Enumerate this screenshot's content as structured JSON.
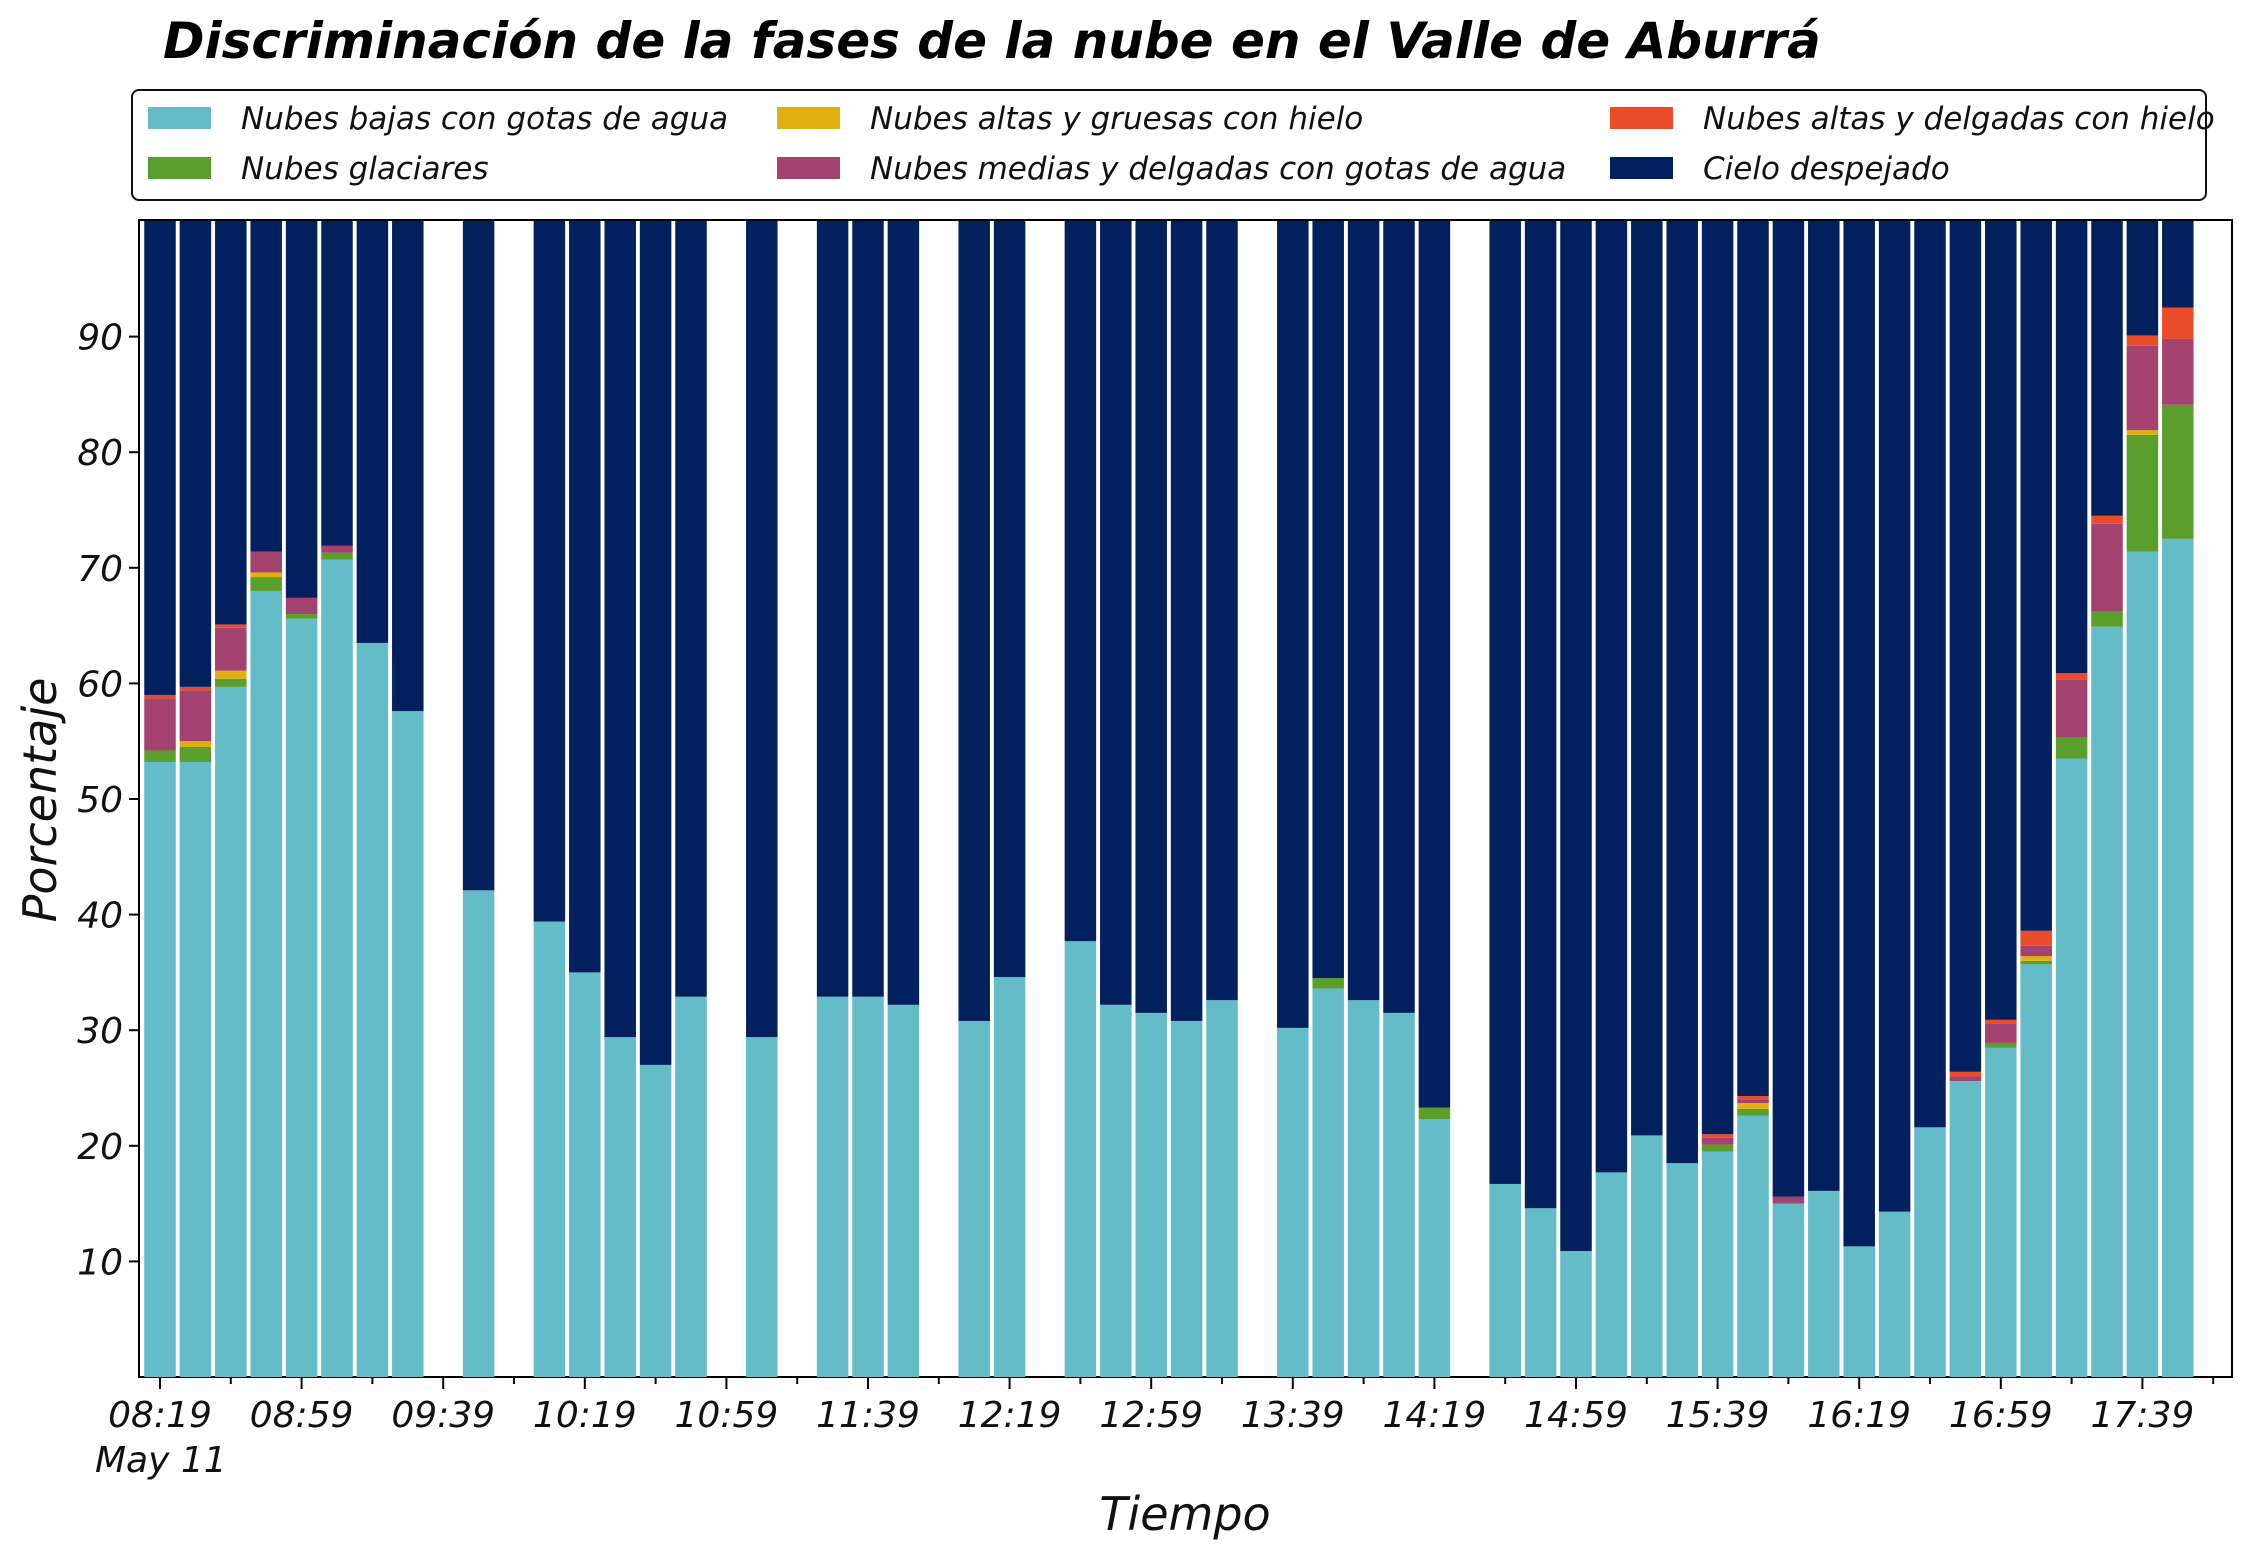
{
  "chart_data": {
    "type": "bar",
    "stacked": true,
    "title": "Discriminación de la fases de la nube en el Valle de Aburrá",
    "xlabel": "Tiempo",
    "ylabel": "Porcentaje",
    "ylim": [
      0,
      100
    ],
    "yticks": [
      10,
      20,
      30,
      40,
      50,
      60,
      70,
      80,
      90
    ],
    "x_tick_labels": [
      "08:19",
      "08:59",
      "09:39",
      "10:19",
      "10:59",
      "11:39",
      "12:19",
      "12:59",
      "13:39",
      "14:19",
      "14:59",
      "15:39",
      "16:19",
      "16:59",
      "17:39"
    ],
    "x_date_label": "May 11",
    "x_start": "08:19",
    "x_step_minutes": 10,
    "slots": 58,
    "grid": false,
    "legend": "top",
    "categories": [
      "08:19",
      "08:29",
      "08:39",
      "08:49",
      "08:59",
      "09:09",
      "09:19",
      "09:29",
      "09:39",
      "09:49",
      "09:59",
      "10:09",
      "10:19",
      "10:29",
      "10:39",
      "10:49",
      "10:59",
      "11:09",
      "11:19",
      "11:29",
      "11:39",
      "11:49",
      "11:59",
      "12:09",
      "12:19",
      "12:29",
      "12:39",
      "12:49",
      "12:59",
      "13:09",
      "13:19",
      "13:29",
      "13:39",
      "13:49",
      "13:59",
      "14:09",
      "14:19",
      "14:29",
      "14:39",
      "14:49",
      "14:59",
      "15:09",
      "15:19",
      "15:29",
      "15:39",
      "15:49",
      "15:59",
      "16:09",
      "16:19",
      "16:29",
      "16:39",
      "16:49",
      "16:59",
      "17:09",
      "17:19",
      "17:29",
      "17:39",
      "17:49"
    ],
    "series": [
      {
        "name": "Nubes bajas con gotas de agua",
        "color": "#63bcc8",
        "values": [
          53.2,
          53.2,
          59.7,
          68.0,
          65.6,
          70.7,
          63.5,
          57.6,
          null,
          42.1,
          null,
          39.4,
          35.0,
          29.4,
          27.0,
          32.9,
          null,
          29.4,
          null,
          32.9,
          32.9,
          32.2,
          null,
          30.8,
          34.6,
          null,
          37.7,
          32.2,
          31.5,
          30.8,
          32.6,
          null,
          30.2,
          33.6,
          32.6,
          31.5,
          22.3,
          null,
          16.7,
          14.6,
          10.9,
          17.7,
          20.9,
          18.5,
          19.5,
          22.6,
          15.0,
          16.1,
          11.3,
          14.3,
          21.6,
          25.6,
          28.5,
          35.7,
          53.5,
          64.9,
          71.4,
          72.5
        ]
      },
      {
        "name": "Nubes glaciares",
        "color": "#5a9e2c",
        "values": [
          1.0,
          1.3,
          0.7,
          1.2,
          0.4,
          0.6,
          0,
          0,
          null,
          0,
          null,
          0,
          0,
          0,
          0,
          0,
          null,
          0,
          null,
          0,
          0,
          0,
          null,
          0,
          0,
          null,
          0,
          0,
          0,
          0,
          0,
          null,
          0,
          0.9,
          0,
          0,
          1.0,
          null,
          0,
          0,
          0,
          0,
          0,
          0,
          0.6,
          0.6,
          0,
          0,
          0,
          0,
          0,
          0,
          0.4,
          0.3,
          1.8,
          1.3,
          10.1,
          11.6
        ]
      },
      {
        "name": "Nubes altas y gruesas con hielo",
        "color": "#e0b011",
        "values": [
          0,
          0.5,
          0.7,
          0.4,
          0,
          0,
          0,
          0,
          null,
          0,
          null,
          0,
          0,
          0,
          0,
          0,
          null,
          0,
          null,
          0,
          0,
          0,
          null,
          0,
          0,
          null,
          0,
          0,
          0,
          0,
          0,
          null,
          0,
          0,
          0,
          0,
          0,
          null,
          0,
          0,
          0,
          0,
          0,
          0,
          0,
          0.5,
          0,
          0,
          0,
          0,
          0,
          0,
          0,
          0.4,
          0,
          0,
          0.4,
          0
        ]
      },
      {
        "name": "Nubes medias y delgadas con gotas de agua",
        "color": "#a3416f",
        "values": [
          4.5,
          4.4,
          3.7,
          1.8,
          1.4,
          0.6,
          0,
          0,
          null,
          0,
          null,
          0,
          0,
          0,
          0,
          0,
          null,
          0,
          null,
          0,
          0,
          0,
          null,
          0,
          0,
          null,
          0,
          0,
          0,
          0,
          0,
          null,
          0,
          0,
          0,
          0,
          0,
          null,
          0,
          0,
          0,
          0,
          0,
          0,
          0.6,
          0.3,
          0.6,
          0,
          0,
          0,
          0,
          0.4,
          1.7,
          0.9,
          5.0,
          7.6,
          7.3,
          5.7
        ]
      },
      {
        "name": "Nubes altas y delgadas con hielo",
        "color": "#ea4b2b",
        "values": [
          0.3,
          0.3,
          0.3,
          0,
          0,
          0,
          0,
          0,
          null,
          0,
          null,
          0,
          0,
          0,
          0,
          0,
          null,
          0,
          null,
          0,
          0,
          0,
          null,
          0,
          0,
          null,
          0,
          0,
          0,
          0,
          0,
          null,
          0,
          0,
          0,
          0,
          0,
          null,
          0,
          0,
          0,
          0,
          0,
          0,
          0.3,
          0.3,
          0,
          0,
          0,
          0,
          0,
          0.4,
          0.3,
          1.3,
          0.6,
          0.7,
          0.9,
          2.7
        ]
      },
      {
        "name": "Cielo despejado",
        "color": "#021f5e",
        "values": [
          41.0,
          40.3,
          34.9,
          28.6,
          32.6,
          28.1,
          36.5,
          42.4,
          null,
          57.9,
          null,
          60.6,
          65.0,
          70.6,
          73.0,
          67.1,
          null,
          70.6,
          null,
          67.1,
          67.1,
          67.8,
          null,
          69.2,
          65.4,
          null,
          62.3,
          67.8,
          68.5,
          69.2,
          67.4,
          null,
          69.8,
          65.5,
          67.4,
          68.5,
          76.7,
          null,
          83.3,
          85.4,
          89.1,
          82.3,
          79.1,
          81.5,
          79.0,
          75.7,
          84.4,
          83.9,
          88.7,
          85.7,
          78.4,
          73.6,
          69.1,
          61.4,
          39.1,
          25.5,
          9.9,
          7.5
        ]
      }
    ]
  }
}
